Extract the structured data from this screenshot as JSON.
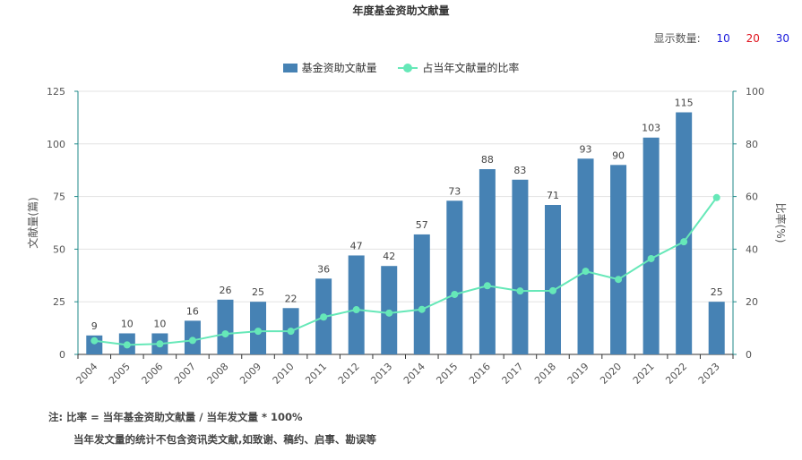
{
  "header": {
    "title": "年度基金资助文献量"
  },
  "display_count": {
    "label": "显示数量:",
    "options": [
      {
        "label": "10",
        "color": "#1a1adb"
      },
      {
        "label": "20",
        "color": "#e0141e"
      },
      {
        "label": "30",
        "color": "#1a1adb"
      }
    ]
  },
  "notes": {
    "line1": "注:  比率 = 当年基金资助文献量 / 当年发文量 * 100%",
    "line2": "当年发文量的统计不包含资讯类文献,如致谢、稿约、启事、勘误等"
  },
  "chart_data": {
    "type": "bar",
    "title": "年度基金资助文献量",
    "categories": [
      "2004",
      "2005",
      "2006",
      "2007",
      "2008",
      "2009",
      "2010",
      "2011",
      "2012",
      "2013",
      "2014",
      "2015",
      "2016",
      "2017",
      "2018",
      "2019",
      "2020",
      "2021",
      "2022",
      "2023"
    ],
    "series": [
      {
        "name": "基金资助文献量",
        "type": "bar",
        "axis": "left",
        "color": "#4682b4",
        "values": [
          9,
          10,
          10,
          16,
          26,
          25,
          22,
          36,
          47,
          42,
          57,
          73,
          88,
          83,
          71,
          93,
          90,
          103,
          115,
          25
        ]
      },
      {
        "name": "占当年文献量的比率",
        "type": "line",
        "axis": "right",
        "color": "#66e8b8",
        "values": [
          5.2,
          3.6,
          4.0,
          5.3,
          7.8,
          8.8,
          8.8,
          14.2,
          17.0,
          15.7,
          17.1,
          22.8,
          26.1,
          24.1,
          24.2,
          31.6,
          28.5,
          36.4,
          42.8,
          59.6
        ]
      }
    ],
    "ylabel": "文献量(篇)",
    "y2label": "比率(%)",
    "ylim": [
      0,
      125
    ],
    "y2lim": [
      0,
      100
    ],
    "yticks": [
      0,
      25,
      50,
      75,
      100,
      125
    ],
    "y2ticks": [
      0,
      20,
      40,
      60,
      80,
      100
    ],
    "grid": true,
    "legend": "top-center"
  }
}
